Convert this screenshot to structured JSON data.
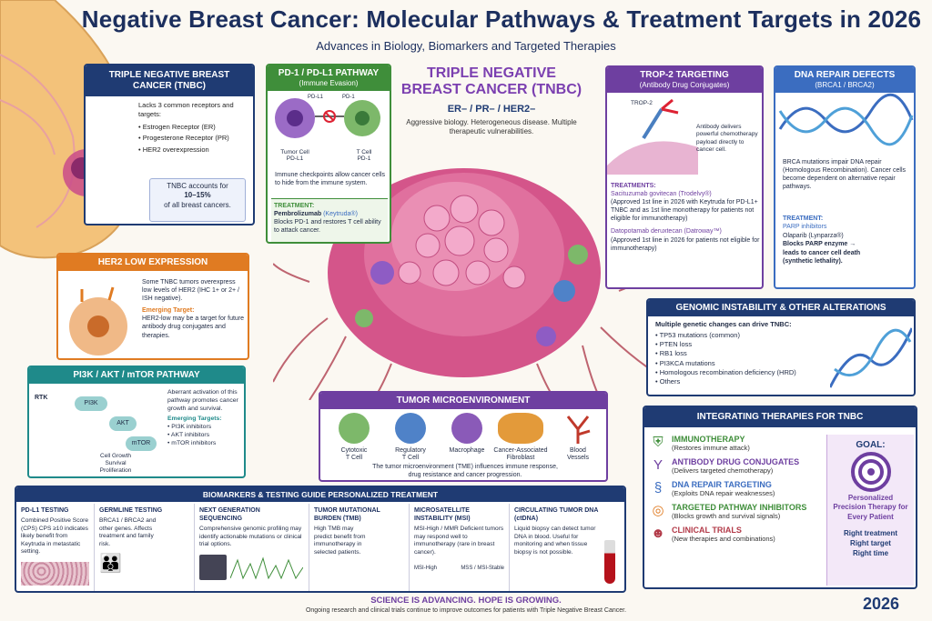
{
  "header": {
    "title": "Triple Negative Breast Cancer: Molecular Pathways & Treatment Targets in 2026",
    "subtitle": "Advances in Biology, Biomarkers and Targeted Therapies"
  },
  "center": {
    "title_line1": "TRIPLE NEGATIVE",
    "title_line2": "BREAST CANCER (TNBC)",
    "receptors": "ER– / PR– / HER2–",
    "desc": "Aggressive biology. Heterogeneous disease. Multiple therapeutic vulnerabilities."
  },
  "tnbc_box": {
    "header": "TRIPLE NEGATIVE BREAST CANCER (TNBC)",
    "intro": "Lacks 3 common receptors and targets:",
    "items": [
      "Estrogen Receptor (ER)",
      "Progesterone Receptor (PR)",
      "HER2 overexpression"
    ],
    "note_pre": "TNBC accounts for",
    "note_strong": "10–15%",
    "note_post": "of all breast cancers."
  },
  "pd1": {
    "header": "PD-1 / PD-L1 PATHWAY",
    "subheader": "(Immune Evasion)",
    "label_tumor": "Tumor Cell",
    "label_tumor_sub": "PD-L1",
    "label_t": "T Cell",
    "label_t_sub": "PD-1",
    "label_pdl1": "PD-L1",
    "label_pd1": "PD-1",
    "desc": "Immune checkpoints allow cancer cells to hide from the immune system.",
    "treat_label": "TREATMENT:",
    "treat_drug": "Pembrolizumab",
    "treat_brand": "(Keytruda®)",
    "treat_desc": "Blocks PD-1 and restores T cell ability to attack cancer."
  },
  "trop2": {
    "header": "TROP-2 TARGETING",
    "subheader": "(Antibody Drug Conjugates)",
    "label_trop2": "TROP-2",
    "desc": "Antibody delivers powerful chemotherapy payload directly to cancer cell.",
    "treat_label": "TREATMENTS:",
    "drug1": "Sacituzumab govitecan (Trodelvy®)",
    "drug1_desc": "(Approved 1st line in 2026 with Keytruda for PD-L1+ TNBC and as 1st line monotherapy for patients not eligible for immunotherapy)",
    "drug2": "Datopotamab deruxtecan (Datroway™)",
    "drug2_desc": "(Approved 1st line in 2026 for patients not eligible for immunotherapy)"
  },
  "dna": {
    "header": "DNA REPAIR DEFECTS",
    "subheader": "(BRCA1 / BRCA2)",
    "desc": "BRCA mutations impair DNA repair (Homologous Recombination). Cancer cells become dependent on alternative repair pathways.",
    "treat_label": "TREATMENT:",
    "drug": "PARP inhibitors",
    "drug_name": "Olaparib (Lynparza®)",
    "drug_desc1": "Blocks PARP enzyme →",
    "drug_desc2": "leads to cancer cell death",
    "drug_desc3": "(synthetic lethality)."
  },
  "her2": {
    "header": "HER2 LOW EXPRESSION",
    "desc": "Some TNBC tumors overexpress low levels of HER2 (IHC 1+ or 2+ / ISH negative).",
    "target_label": "Emerging Target:",
    "target_desc": "HER2-low may be a target for future antibody drug conjugates and therapies."
  },
  "pi3k": {
    "header": "PI3K / AKT / mTOR PATHWAY",
    "node_rtk": "RTK",
    "node_pi3k": "PI3K",
    "node_akt": "AKT",
    "node_mtor": "mTOR",
    "outcome1": "Cell Growth",
    "outcome2": "Survival",
    "outcome3": "Proliferation",
    "desc": "Aberrant activation of this pathway promotes cancer growth and survival.",
    "targets_label": "Emerging Targets:",
    "targets": [
      "PI3K inhibitors",
      "AKT inhibitors",
      "mTOR inhibitors"
    ]
  },
  "genomic": {
    "header": "GENOMIC INSTABILITY & OTHER ALTERATIONS",
    "intro": "Multiple genetic changes can drive TNBC:",
    "items": [
      "TP53 mutations (common)",
      "PTEN loss",
      "RB1 loss",
      "PI3KCA mutations",
      "Homologous recombination deficiency (HRD)",
      "Others"
    ]
  },
  "tme": {
    "header": "TUMOR MICROENVIRONMENT",
    "cells": [
      {
        "l1": "Cytotoxic",
        "l2": "T Cell",
        "color": "#7db86a"
      },
      {
        "l1": "Regulatory",
        "l2": "T Cell",
        "color": "#4f82c8"
      },
      {
        "l1": "Macrophage",
        "l2": "",
        "color": "#8a5ab8"
      },
      {
        "l1": "Cancer-Associated",
        "l2": "Fibroblast",
        "color": "#e39a3a"
      },
      {
        "l1": "Blood",
        "l2": "Vessels",
        "color": "#c0392b"
      }
    ],
    "desc1": "The tumor microenvironment (TME) influences immune response,",
    "desc2": "drug resistance and cancer progression."
  },
  "integrating": {
    "header": "INTEGRATING THERAPIES FOR TNBC",
    "items": [
      {
        "title": "IMMUNOTHERAPY",
        "sub": "(Restores immune attack)",
        "color": "#3f8e3a",
        "icon": "shield-icon"
      },
      {
        "title": "ANTIBODY DRUG CONJUGATES",
        "sub": "(Delivers targeted chemotherapy)",
        "color": "#6e3fa0",
        "icon": "antibody-icon"
      },
      {
        "title": "DNA REPAIR TARGETING",
        "sub": "(Exploits DNA repair weaknesses)",
        "color": "#3b6dc0",
        "icon": "dna-icon"
      },
      {
        "title": "TARGETED PATHWAY INHIBITORS",
        "sub": "(Blocks growth and survival signals)",
        "color": "#3f8e3a",
        "icon": "target-icon"
      },
      {
        "title": "CLINICAL TRIALS",
        "sub": "(New therapies and combinations)",
        "color": "#b23a48",
        "icon": "people-icon"
      }
    ],
    "goal_label": "GOAL:",
    "goal_text": "Personalized Precision Therapy for Every Patient",
    "right1": "Right treatment",
    "right2": "Right target",
    "right3": "Right time"
  },
  "biomarkers": {
    "header": "BIOMARKERS & TESTING GUIDE PERSONALIZED TREATMENT",
    "cols": [
      {
        "h": "PD-L1 TESTING",
        "t": "Combined Positive Score (CPS) CPS ≥10 indicates likely benefit from Keytruda in metastatic setting."
      },
      {
        "h": "GERMLINE TESTING",
        "t": "BRCA1 / BRCA2 and other genes. Affects treatment and family risk."
      },
      {
        "h": "NEXT GENERATION SEQUENCING",
        "t": "Comprehensive genomic profiling may identify actionable mutations or clinical trial options."
      },
      {
        "h": "TUMOR MUTATIONAL BURDEN (TMB)",
        "t": "High TMB may predict benefit from immunotherapy in selected patients."
      },
      {
        "h": "MICROSATELLITE INSTABILITY (MSI)",
        "t": "MSI-High / MMR Deficient tumors may respond well to immunotherapy (rare in breast cancer)."
      },
      {
        "h": "CIRCULATING TUMOR DNA (ctDNA)",
        "t": "Liquid biopsy can detect tumor DNA in blood. Useful for monitoring and when tissue biopsy is not possible."
      }
    ],
    "msi_high": "MSI-High",
    "msi_stable": "MSS / MSI-Stable"
  },
  "footer": {
    "tagline": "SCIENCE IS ADVANCING. HOPE IS GROWING.",
    "note": "Ongoing research and clinical trials continue to improve outcomes for patients with Triple Negative Breast Cancer.",
    "year": "2026"
  }
}
